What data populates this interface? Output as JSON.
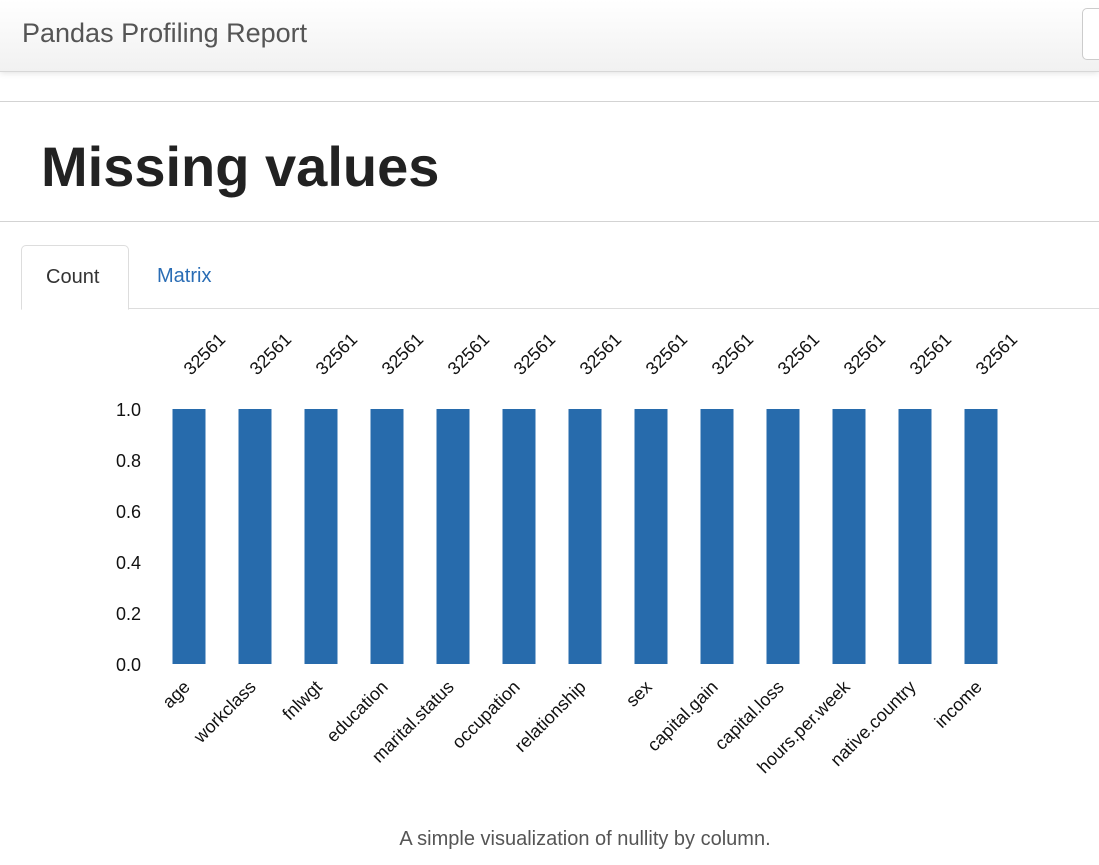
{
  "navbar": {
    "brand": "Pandas Profiling Report"
  },
  "section": {
    "title": "Missing values"
  },
  "tabs": [
    {
      "label": "Count",
      "active": true
    },
    {
      "label": "Matrix",
      "active": false
    }
  ],
  "colors": {
    "bar": "#276bac",
    "link": "#2a6db5"
  },
  "chart_data": {
    "type": "bar",
    "categories": [
      "age",
      "workclass",
      "fnlwgt",
      "education",
      "marital.status",
      "occupation",
      "relationship",
      "sex",
      "capital.gain",
      "capital.loss",
      "hours.per.week",
      "native.country",
      "income"
    ],
    "values": [
      1.0,
      1.0,
      1.0,
      1.0,
      1.0,
      1.0,
      1.0,
      1.0,
      1.0,
      1.0,
      1.0,
      1.0,
      1.0
    ],
    "counts": [
      "32561",
      "32561",
      "32561",
      "32561",
      "32561",
      "32561",
      "32561",
      "32561",
      "32561",
      "32561",
      "32561",
      "32561",
      "32561"
    ],
    "yticks": [
      "0.0",
      "0.2",
      "0.4",
      "0.6",
      "0.8",
      "1.0"
    ],
    "ylim": [
      0,
      1
    ],
    "grid": false
  },
  "caption": "A simple visualization of nullity by column."
}
